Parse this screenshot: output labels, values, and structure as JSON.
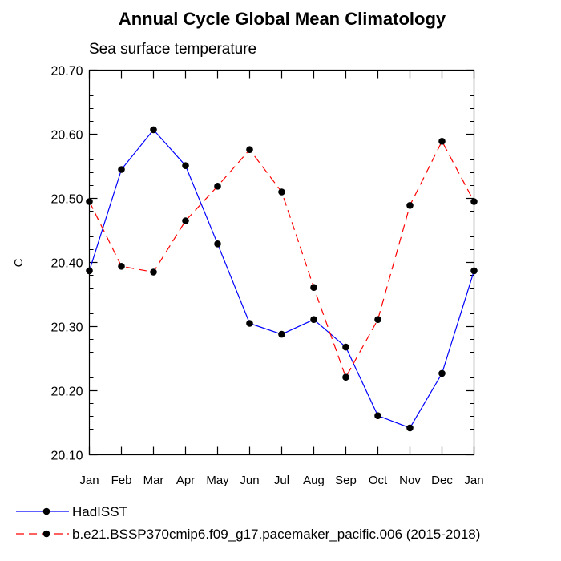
{
  "chart_data": {
    "type": "line",
    "title": "Annual Cycle Global Mean Climatology",
    "subtitle": "Sea surface temperature",
    "ylabel": "C",
    "xlabel": "",
    "categories": [
      "Jan",
      "Feb",
      "Mar",
      "Apr",
      "May",
      "Jun",
      "Jul",
      "Aug",
      "Sep",
      "Oct",
      "Nov",
      "Dec",
      "Jan"
    ],
    "ylim": [
      20.1,
      20.7
    ],
    "yticks": [
      "20.10",
      "20.20",
      "20.30",
      "20.40",
      "20.50",
      "20.60",
      "20.70"
    ],
    "grid": false,
    "legend_position": "bottom",
    "series": [
      {
        "name": "HadISST",
        "color": "#0000ff",
        "dash": "solid",
        "values": [
          20.387,
          20.545,
          20.607,
          20.551,
          20.429,
          20.305,
          20.288,
          20.311,
          20.268,
          20.161,
          20.142,
          20.227,
          20.387
        ]
      },
      {
        "name": "b.e21.BSSP370cmip6.f09_g17.pacemaker_pacific.006 (2015-2018)",
        "color": "#ff0000",
        "dash": "dashed",
        "values": [
          20.495,
          20.394,
          20.385,
          20.465,
          20.519,
          20.576,
          20.51,
          20.361,
          20.221,
          20.311,
          20.489,
          20.589,
          20.495
        ]
      }
    ]
  }
}
